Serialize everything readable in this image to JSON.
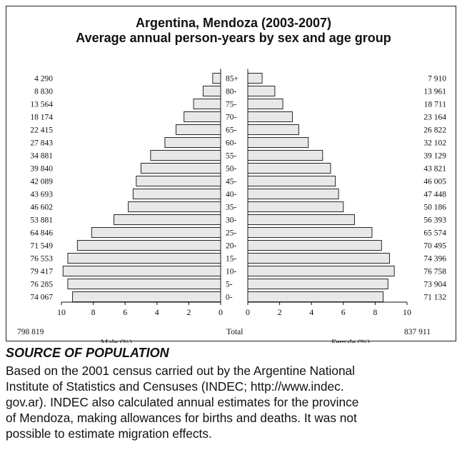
{
  "header": {
    "title": "Argentina, Mendoza (2003-2007)",
    "subtitle": "Average annual person-years by sex and age group"
  },
  "chart_data": {
    "type": "bar",
    "orientation": "population-pyramid",
    "title": "Argentina, Mendoza (2003-2007)",
    "subtitle": "Average annual person-years by sex and age group",
    "categories": [
      "85+",
      "80-",
      "75-",
      "70-",
      "65-",
      "60-",
      "55-",
      "50-",
      "45-",
      "40-",
      "35-",
      "30-",
      "25-",
      "20-",
      "15-",
      "10-",
      "5-",
      "0-"
    ],
    "male_counts": [
      "4 290",
      "8 830",
      "13 564",
      "18 174",
      "22 415",
      "27 843",
      "34 881",
      "39 840",
      "42 089",
      "43 693",
      "46 602",
      "53 881",
      "64 846",
      "71 549",
      "76 553",
      "79 417",
      "76 285",
      "74 067"
    ],
    "female_counts": [
      "7 910",
      "13 961",
      "18 711",
      "23 164",
      "26 822",
      "32 102",
      "39 129",
      "43 821",
      "46 005",
      "47 448",
      "50 186",
      "56 393",
      "65 574",
      "70 495",
      "74 396",
      "76 758",
      "73 904",
      "71 132"
    ],
    "series": [
      {
        "name": "Male (%)",
        "values": [
          0.5,
          1.1,
          1.7,
          2.3,
          2.8,
          3.5,
          4.4,
          5.0,
          5.3,
          5.5,
          5.8,
          6.7,
          8.1,
          9.0,
          9.6,
          9.9,
          9.6,
          9.3
        ]
      },
      {
        "name": "Female (%)",
        "values": [
          0.9,
          1.7,
          2.2,
          2.8,
          3.2,
          3.8,
          4.7,
          5.2,
          5.5,
          5.7,
          6.0,
          6.7,
          7.8,
          8.4,
          8.9,
          9.2,
          8.8,
          8.5
        ]
      }
    ],
    "xticks_male": [
      "10",
      "8",
      "6",
      "4",
      "2",
      "0"
    ],
    "xticks_female": [
      "0",
      "2",
      "4",
      "6",
      "8",
      "10"
    ],
    "xlim": [
      0,
      10
    ],
    "xlabel_male": "Male (%)",
    "xlabel_female": "Female (%)",
    "center_label": "Total",
    "total_male": "798 819",
    "total_female": "837 911",
    "grid": false
  },
  "source": {
    "heading": "SOURCE OF POPULATION",
    "lines": [
      "Based on the 2001 census carried out by the Argentine National",
      "Institute of Statistics and Censuses (INDEC; http://www.indec.",
      "gov.ar). INDEC also calculated annual estimates for the province",
      "of Mendoza, making allowances for births and deaths. It was not",
      "possible to estimate migration effects."
    ]
  }
}
